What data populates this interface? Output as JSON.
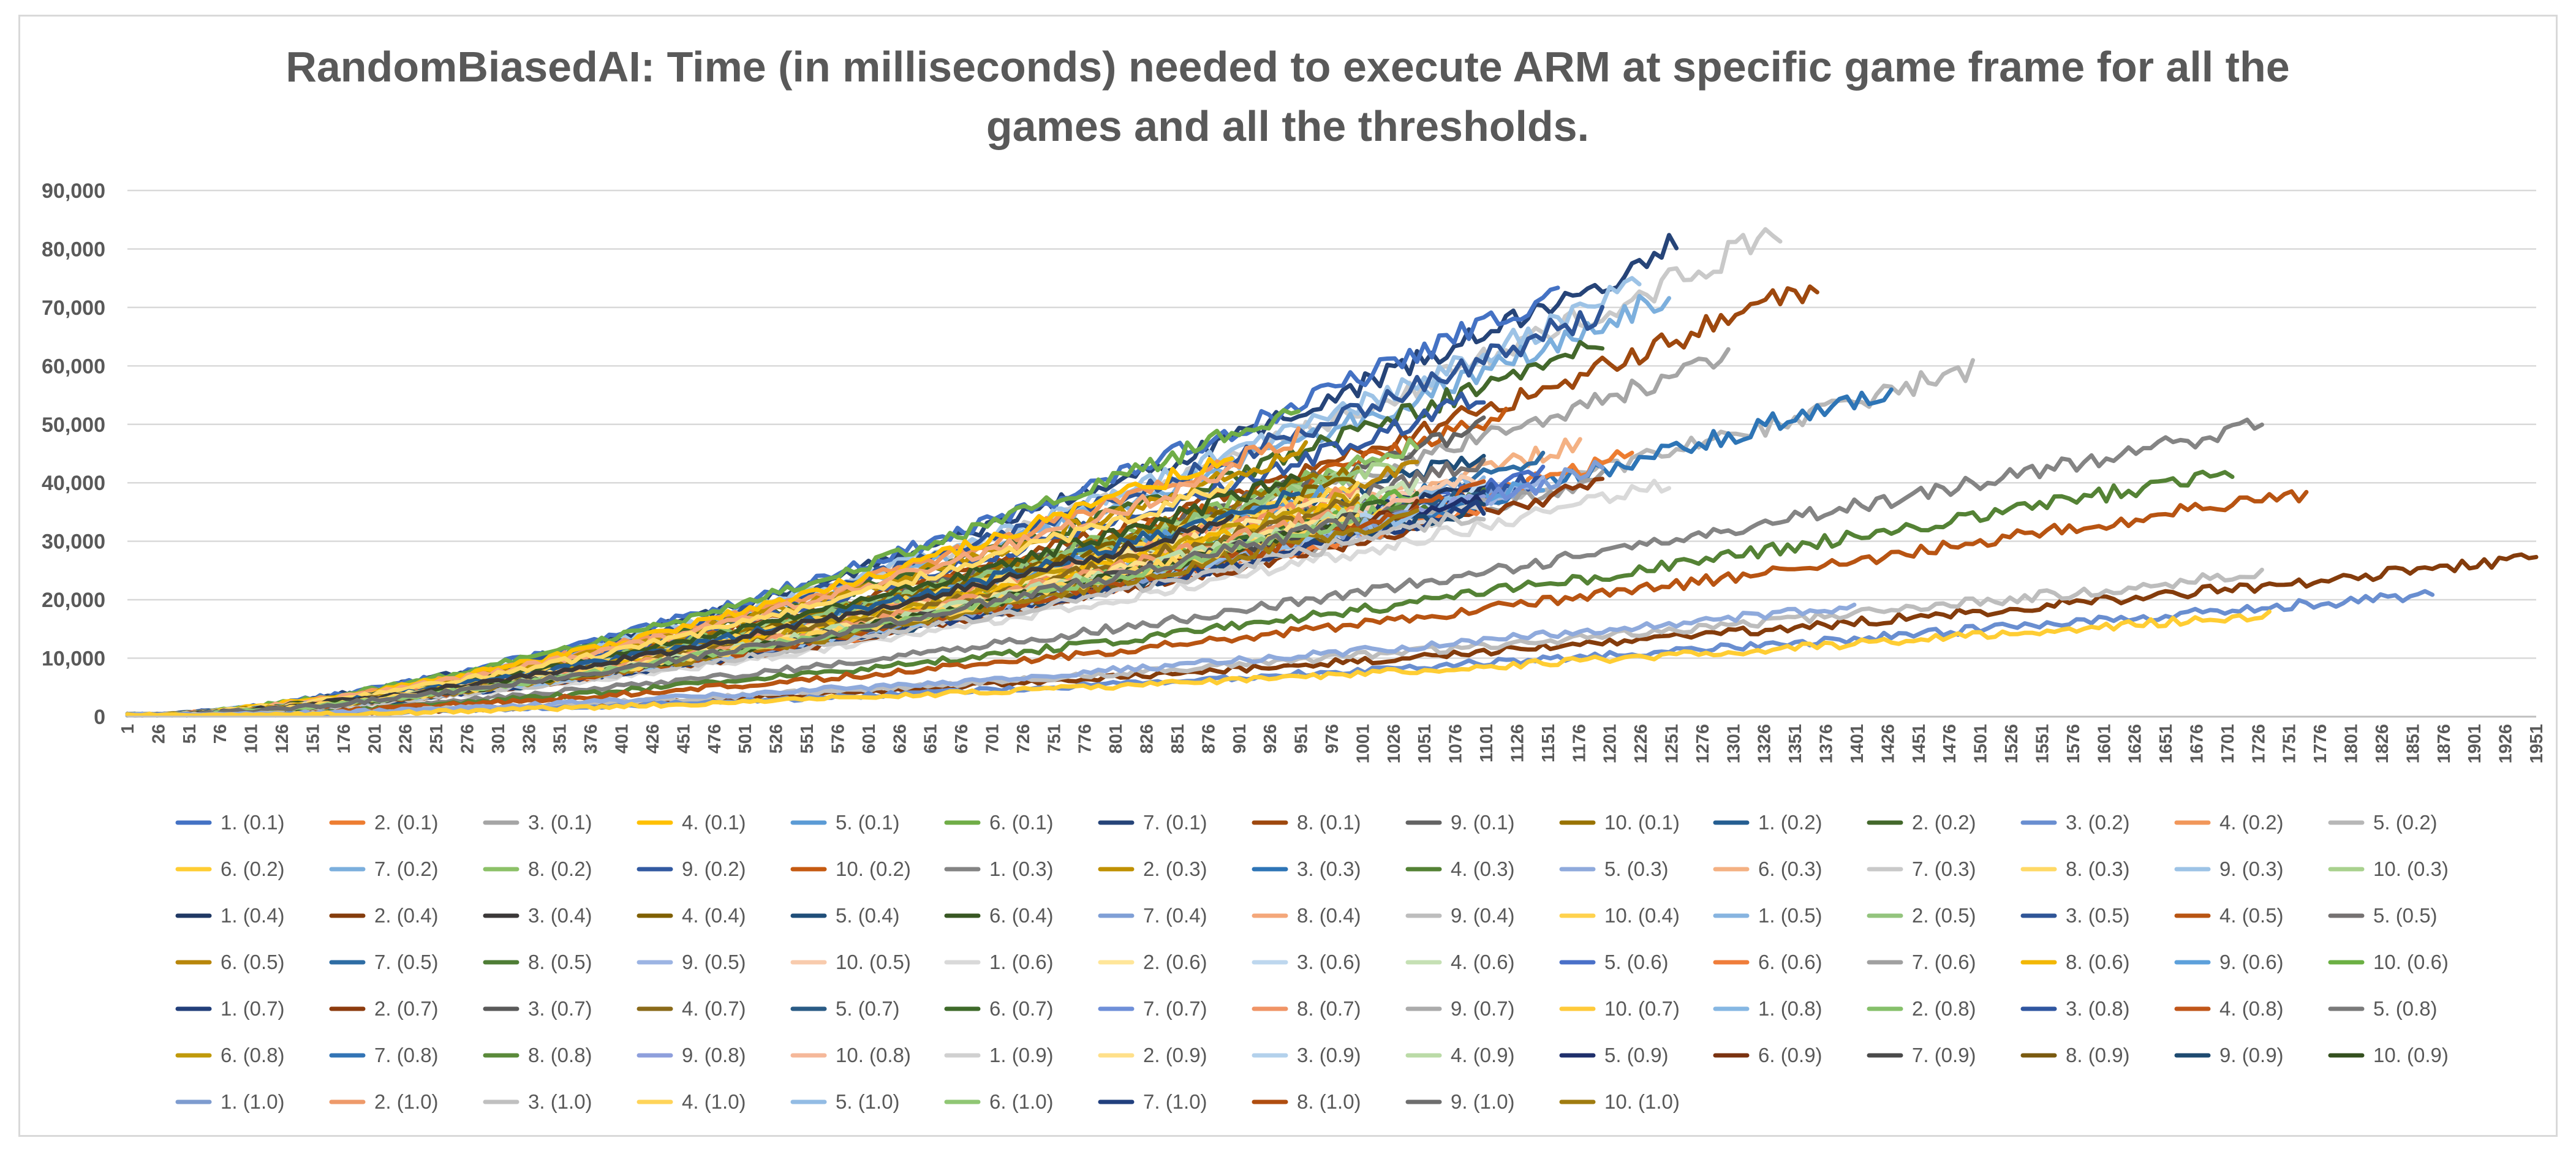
{
  "chart_data": {
    "type": "line",
    "title_lines": [
      "RandomBiasedAI: Time (in milliseconds) needed to execute ARM at specific game frame for all the",
      "games and all the thresholds."
    ],
    "xlabel": "",
    "ylabel": "",
    "ylim": [
      0,
      90000
    ],
    "xlim": [
      1,
      1951
    ],
    "grid": true,
    "legend_position": "bottom",
    "y_ticks": [
      "0",
      "10,000",
      "20,000",
      "30,000",
      "40,000",
      "50,000",
      "60,000",
      "70,000",
      "80,000",
      "90,000"
    ],
    "y_tick_values": [
      0,
      10000,
      20000,
      30000,
      40000,
      50000,
      60000,
      70000,
      80000,
      90000
    ],
    "x_ticks": [
      "1",
      "26",
      "51",
      "76",
      "101",
      "126",
      "151",
      "176",
      "201",
      "226",
      "251",
      "276",
      "301",
      "326",
      "351",
      "376",
      "401",
      "426",
      "451",
      "476",
      "501",
      "526",
      "551",
      "576",
      "601",
      "626",
      "651",
      "676",
      "701",
      "726",
      "751",
      "776",
      "801",
      "826",
      "851",
      "876",
      "901",
      "926",
      "951",
      "976",
      "1001",
      "1026",
      "1051",
      "1076",
      "1101",
      "1126",
      "1151",
      "1176",
      "1201",
      "1226",
      "1251",
      "1276",
      "1301",
      "1326",
      "1351",
      "1376",
      "1401",
      "1426",
      "1451",
      "1476",
      "1501",
      "1526",
      "1551",
      "1576",
      "1601",
      "1626",
      "1651",
      "1676",
      "1701",
      "1726",
      "1751",
      "1776",
      "1801",
      "1826",
      "1851",
      "1876",
      "1901",
      "1926",
      "1951"
    ],
    "series": [
      {
        "name": "1. (0.1)",
        "color": "#4472C4",
        "end_x": 1160,
        "end_y": 73000
      },
      {
        "name": "2. (0.1)",
        "color": "#ED7D31",
        "end_x": 1220,
        "end_y": 45000
      },
      {
        "name": "3. (0.1)",
        "color": "#A5A5A5",
        "end_x": 1300,
        "end_y": 62000
      },
      {
        "name": "4. (0.1)",
        "color": "#FFC000",
        "end_x": 900,
        "end_y": 45000
      },
      {
        "name": "5. (0.1)",
        "color": "#5B9BD5",
        "end_x": 1000,
        "end_y": 40000
      },
      {
        "name": "6. (0.1)",
        "color": "#70AD47",
        "end_x": 950,
        "end_y": 53000
      },
      {
        "name": "7. (0.1)",
        "color": "#264478",
        "end_x": 1260,
        "end_y": 81000
      },
      {
        "name": "8. (0.1)",
        "color": "#9E480E",
        "end_x": 1370,
        "end_y": 74000
      },
      {
        "name": "9. (0.1)",
        "color": "#636363",
        "end_x": 1100,
        "end_y": 50000
      },
      {
        "name": "10. (0.1)",
        "color": "#997300",
        "end_x": 1000,
        "end_y": 43000
      },
      {
        "name": "1. (0.2)",
        "color": "#255E91",
        "end_x": 950,
        "end_y": 38000
      },
      {
        "name": "2. (0.2)",
        "color": "#43682B",
        "end_x": 1200,
        "end_y": 65000
      },
      {
        "name": "3. (0.2)",
        "color": "#698ED0",
        "end_x": 1870,
        "end_y": 21000
      },
      {
        "name": "4. (0.2)",
        "color": "#F1975A",
        "end_x": 950,
        "end_y": 48000
      },
      {
        "name": "5. (0.2)",
        "color": "#B7B7B7",
        "end_x": 1500,
        "end_y": 60000
      },
      {
        "name": "6. (0.2)",
        "color": "#FFCD33",
        "end_x": 1740,
        "end_y": 17500
      },
      {
        "name": "7. (0.2)",
        "color": "#7CAFDD",
        "end_x": 1250,
        "end_y": 72000
      },
      {
        "name": "8. (0.2)",
        "color": "#8CC168",
        "end_x": 1050,
        "end_y": 47000
      },
      {
        "name": "9. (0.2)",
        "color": "#335AA1",
        "end_x": 1100,
        "end_y": 55000
      },
      {
        "name": "10. (0.2)",
        "color": "#C55A11",
        "end_x": 1120,
        "end_y": 52000
      },
      {
        "name": "1. (0.3)",
        "color": "#848484",
        "end_x": 1730,
        "end_y": 50000
      },
      {
        "name": "2. (0.3)",
        "color": "#BF9000",
        "end_x": 960,
        "end_y": 46000
      },
      {
        "name": "3. (0.3)",
        "color": "#2E75B6",
        "end_x": 1430,
        "end_y": 56000
      },
      {
        "name": "4. (0.3)",
        "color": "#548235",
        "end_x": 1710,
        "end_y": 42000
      },
      {
        "name": "5. (0.3)",
        "color": "#8FAADC",
        "end_x": 1400,
        "end_y": 19000
      },
      {
        "name": "6. (0.3)",
        "color": "#F4B183",
        "end_x": 1180,
        "end_y": 47000
      },
      {
        "name": "7. (0.3)",
        "color": "#C9C9C9",
        "end_x": 1340,
        "end_y": 83000
      },
      {
        "name": "8. (0.3)",
        "color": "#FFD966",
        "end_x": 900,
        "end_y": 40000
      },
      {
        "name": "9. (0.3)",
        "color": "#9DC3E6",
        "end_x": 1230,
        "end_y": 74000
      },
      {
        "name": "10. (0.3)",
        "color": "#A9D18E",
        "end_x": 1030,
        "end_y": 44000
      },
      {
        "name": "1. (0.4)",
        "color": "#1F3864",
        "end_x": 1100,
        "end_y": 40000
      },
      {
        "name": "2. (0.4)",
        "color": "#843C0C",
        "end_x": 1951,
        "end_y": 27000
      },
      {
        "name": "3. (0.4)",
        "color": "#3B3838",
        "end_x": 900,
        "end_y": 34000
      },
      {
        "name": "4. (0.4)",
        "color": "#7F6000",
        "end_x": 1000,
        "end_y": 41000
      },
      {
        "name": "5. (0.4)",
        "color": "#1F4E79",
        "end_x": 1100,
        "end_y": 45000
      },
      {
        "name": "6. (0.4)",
        "color": "#385723",
        "end_x": 950,
        "end_y": 41000
      },
      {
        "name": "7. (0.4)",
        "color": "#7F9FD6",
        "end_x": 1200,
        "end_y": 43000
      },
      {
        "name": "8. (0.4)",
        "color": "#F4A77A",
        "end_x": 900,
        "end_y": 42000
      },
      {
        "name": "9. (0.4)",
        "color": "#BDBDBD",
        "end_x": 1730,
        "end_y": 24500
      },
      {
        "name": "10. (0.4)",
        "color": "#FFD24D",
        "end_x": 1000,
        "end_y": 40000
      },
      {
        "name": "1. (0.5)",
        "color": "#87B4E0",
        "end_x": 1100,
        "end_y": 41000
      },
      {
        "name": "2. (0.5)",
        "color": "#93C47D",
        "end_x": 1000,
        "end_y": 42000
      },
      {
        "name": "3. (0.5)",
        "color": "#2F5597",
        "end_x": 1200,
        "end_y": 70000
      },
      {
        "name": "4. (0.5)",
        "color": "#B85412",
        "end_x": 1770,
        "end_y": 38500
      },
      {
        "name": "5. (0.5)",
        "color": "#757171",
        "end_x": 1100,
        "end_y": 44000
      },
      {
        "name": "6. (0.5)",
        "color": "#B8860B",
        "end_x": 1050,
        "end_y": 43000
      },
      {
        "name": "7. (0.5)",
        "color": "#2E6DA4",
        "end_x": 1150,
        "end_y": 44000
      },
      {
        "name": "8. (0.5)",
        "color": "#4E7D35",
        "end_x": 1100,
        "end_y": 38000
      },
      {
        "name": "9. (0.5)",
        "color": "#9CB4E3",
        "end_x": 1150,
        "end_y": 40000
      },
      {
        "name": "10. (0.5)",
        "color": "#F8CBAD",
        "end_x": 1100,
        "end_y": 41000
      },
      {
        "name": "1. (0.6)",
        "color": "#D9D9D9",
        "end_x": 1250,
        "end_y": 40000
      },
      {
        "name": "2. (0.6)",
        "color": "#FFE699",
        "end_x": 1000,
        "end_y": 38000
      },
      {
        "name": "3. (0.6)",
        "color": "#BDD7EE",
        "end_x": 1100,
        "end_y": 39000
      },
      {
        "name": "4. (0.6)",
        "color": "#C5E0B4",
        "end_x": 1050,
        "end_y": 40000
      },
      {
        "name": "5. (0.6)",
        "color": "#4A70C8",
        "end_x": 1150,
        "end_y": 42000
      },
      {
        "name": "6. (0.6)",
        "color": "#EF7D3A",
        "end_x": 1100,
        "end_y": 36000
      },
      {
        "name": "7. (0.6)",
        "color": "#A0A0A0",
        "end_x": 1200,
        "end_y": 41000
      },
      {
        "name": "8. (0.6)",
        "color": "#F2B705",
        "end_x": 1000,
        "end_y": 37000
      },
      {
        "name": "9. (0.6)",
        "color": "#5DA0DB",
        "end_x": 1150,
        "end_y": 40000
      },
      {
        "name": "10. (0.6)",
        "color": "#6BB043",
        "end_x": 1050,
        "end_y": 39000
      },
      {
        "name": "1. (0.7)",
        "color": "#223F7A",
        "end_x": 1100,
        "end_y": 38000
      },
      {
        "name": "2. (0.7)",
        "color": "#8C3B0E",
        "end_x": 1200,
        "end_y": 40000
      },
      {
        "name": "3. (0.7)",
        "color": "#5A5A5A",
        "end_x": 1050,
        "end_y": 36000
      },
      {
        "name": "4. (0.7)",
        "color": "#8A6A1A",
        "end_x": 1000,
        "end_y": 37000
      },
      {
        "name": "5. (0.7)",
        "color": "#2A5B85",
        "end_x": 1100,
        "end_y": 39000
      },
      {
        "name": "6. (0.7)",
        "color": "#3E6A2A",
        "end_x": 1050,
        "end_y": 38000
      },
      {
        "name": "7. (0.7)",
        "color": "#6F8FD8",
        "end_x": 1150,
        "end_y": 40000
      },
      {
        "name": "8. (0.7)",
        "color": "#F09466",
        "end_x": 1000,
        "end_y": 39000
      },
      {
        "name": "9. (0.7)",
        "color": "#ABABAB",
        "end_x": 1100,
        "end_y": 37000
      },
      {
        "name": "10. (0.7)",
        "color": "#FFCA3A",
        "end_x": 1050,
        "end_y": 36000
      },
      {
        "name": "1. (0.8)",
        "color": "#86B7E3",
        "end_x": 1100,
        "end_y": 38000
      },
      {
        "name": "2. (0.8)",
        "color": "#86C06A",
        "end_x": 1050,
        "end_y": 37000
      },
      {
        "name": "3. (0.8)",
        "color": "#3056A0",
        "end_x": 1150,
        "end_y": 41000
      },
      {
        "name": "4. (0.8)",
        "color": "#C0561A",
        "end_x": 1100,
        "end_y": 39000
      },
      {
        "name": "5. (0.8)",
        "color": "#7A7A7A",
        "end_x": 1050,
        "end_y": 36000
      },
      {
        "name": "6. (0.8)",
        "color": "#C09A0A",
        "end_x": 1000,
        "end_y": 38000
      },
      {
        "name": "7. (0.8)",
        "color": "#3274B5",
        "end_x": 1100,
        "end_y": 37000
      },
      {
        "name": "8. (0.8)",
        "color": "#5A8A3A",
        "end_x": 1050,
        "end_y": 36000
      },
      {
        "name": "9. (0.8)",
        "color": "#8E9FDC",
        "end_x": 1100,
        "end_y": 38000
      },
      {
        "name": "10. (0.8)",
        "color": "#F5B89A",
        "end_x": 1050,
        "end_y": 37000
      },
      {
        "name": "1. (0.9)",
        "color": "#D0D0D0",
        "end_x": 1100,
        "end_y": 36000
      },
      {
        "name": "2. (0.9)",
        "color": "#FFE08A",
        "end_x": 1000,
        "end_y": 35000
      },
      {
        "name": "3. (0.9)",
        "color": "#B3D1EC",
        "end_x": 1050,
        "end_y": 36000
      },
      {
        "name": "4. (0.9)",
        "color": "#BBDBA7",
        "end_x": 1000,
        "end_y": 35000
      },
      {
        "name": "5. (0.9)",
        "color": "#1F2F6B",
        "end_x": 1100,
        "end_y": 37000
      },
      {
        "name": "6. (0.9)",
        "color": "#7A3210",
        "end_x": 1050,
        "end_y": 36000
      },
      {
        "name": "7. (0.9)",
        "color": "#4A4A4A",
        "end_x": 1000,
        "end_y": 34000
      },
      {
        "name": "8. (0.9)",
        "color": "#7A5A10",
        "end_x": 1050,
        "end_y": 35000
      },
      {
        "name": "9. (0.9)",
        "color": "#1E4A70",
        "end_x": 1100,
        "end_y": 36000
      },
      {
        "name": "10. (0.9)",
        "color": "#34501F",
        "end_x": 1000,
        "end_y": 34000
      },
      {
        "name": "1. (1.0)",
        "color": "#7E9CCF",
        "end_x": 1050,
        "end_y": 35000
      },
      {
        "name": "2. (1.0)",
        "color": "#EE9A6A",
        "end_x": 1000,
        "end_y": 36000
      },
      {
        "name": "3. (1.0)",
        "color": "#C0C0C0",
        "end_x": 1100,
        "end_y": 35000
      },
      {
        "name": "4. (1.0)",
        "color": "#FFD45A",
        "end_x": 1000,
        "end_y": 34000
      },
      {
        "name": "5. (1.0)",
        "color": "#93BCE4",
        "end_x": 1050,
        "end_y": 35000
      },
      {
        "name": "6. (1.0)",
        "color": "#90C774",
        "end_x": 1000,
        "end_y": 34000
      },
      {
        "name": "7. (1.0)",
        "color": "#22407E",
        "end_x": 1100,
        "end_y": 36000
      },
      {
        "name": "8. (1.0)",
        "color": "#B04E10",
        "end_x": 1050,
        "end_y": 35000
      },
      {
        "name": "9. (1.0)",
        "color": "#6E6E6E",
        "end_x": 1000,
        "end_y": 34000
      },
      {
        "name": "10. (1.0)",
        "color": "#A07C10",
        "end_x": 1050,
        "end_y": 35000
      }
    ]
  }
}
